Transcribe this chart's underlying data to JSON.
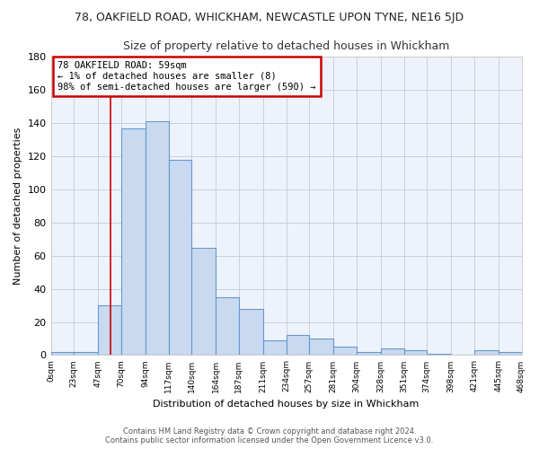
{
  "title": "78, OAKFIELD ROAD, WHICKHAM, NEWCASTLE UPON TYNE, NE16 5JD",
  "subtitle": "Size of property relative to detached houses in Whickham",
  "xlabel": "Distribution of detached houses by size in Whickham",
  "ylabel": "Number of detached properties",
  "bar_color": "#c8d9f0",
  "bar_edge_color": "#6699cc",
  "fig_bg_color": "#ffffff",
  "plot_bg_color": "#eef2fb",
  "grid_color": "#c8cfe0",
  "vline_x": 59,
  "vline_color": "#cc0000",
  "annotation_title": "78 OAKFIELD ROAD: 59sqm",
  "annotation_line1": "← 1% of detached houses are smaller (8)",
  "annotation_line2": "98% of semi-detached houses are larger (590) →",
  "annotation_box_edge_color": "#cc0000",
  "bin_edges": [
    0,
    23,
    47,
    70,
    94,
    117,
    140,
    164,
    187,
    211,
    234,
    257,
    281,
    304,
    328,
    351,
    374,
    398,
    421,
    445,
    468
  ],
  "bin_heights": [
    2,
    2,
    30,
    137,
    141,
    118,
    65,
    35,
    28,
    9,
    12,
    10,
    5,
    2,
    4,
    3,
    1,
    0,
    3,
    2
  ],
  "tick_labels": [
    "0sqm",
    "23sqm",
    "47sqm",
    "70sqm",
    "94sqm",
    "117sqm",
    "140sqm",
    "164sqm",
    "187sqm",
    "211sqm",
    "234sqm",
    "257sqm",
    "281sqm",
    "304sqm",
    "328sqm",
    "351sqm",
    "374sqm",
    "398sqm",
    "421sqm",
    "445sqm",
    "468sqm"
  ],
  "ylim": [
    0,
    180
  ],
  "yticks": [
    0,
    20,
    40,
    60,
    80,
    100,
    120,
    140,
    160,
    180
  ],
  "footer_line1": "Contains HM Land Registry data © Crown copyright and database right 2024.",
  "footer_line2": "Contains public sector information licensed under the Open Government Licence v3.0."
}
